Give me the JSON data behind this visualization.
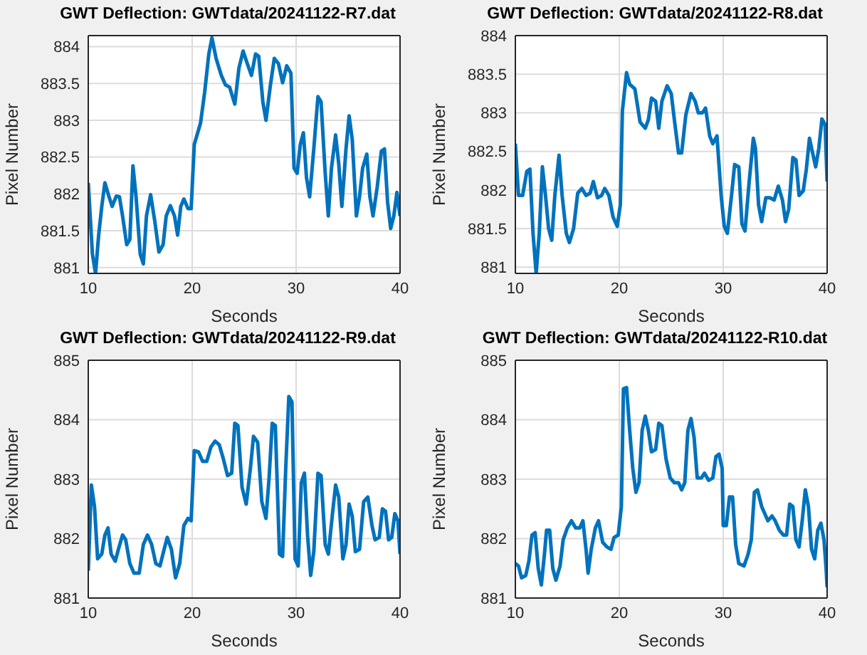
{
  "chart_data": [
    {
      "type": "line",
      "title": "GWT Deflection: GWTdata/20241122-R7.dat",
      "xlabel": "Seconds",
      "ylabel": "Pixel Number",
      "xlim": [
        10,
        40
      ],
      "xticks": [
        10,
        20,
        30,
        40
      ],
      "ylim": [
        880.92,
        884.15
      ],
      "yticks": [
        881,
        881.5,
        882,
        882.5,
        883,
        883.5,
        884
      ],
      "grid": true,
      "x": [
        10.0,
        10.4,
        10.7,
        11.0,
        11.3,
        11.6,
        12.0,
        12.3,
        12.7,
        13.0,
        13.3,
        13.7,
        14.0,
        14.3,
        14.6,
        15.0,
        15.3,
        15.6,
        16.0,
        16.4,
        16.8,
        17.2,
        17.5,
        17.9,
        18.3,
        18.6,
        18.9,
        19.2,
        19.6,
        19.9,
        20.2,
        20.8,
        21.2,
        21.6,
        21.9,
        22.3,
        22.8,
        23.2,
        23.6,
        24.1,
        24.5,
        24.9,
        25.3,
        25.7,
        26.1,
        26.4,
        26.8,
        27.1,
        27.5,
        27.9,
        28.3,
        28.7,
        29.1,
        29.5,
        29.8,
        30.1,
        30.4,
        30.7,
        31.0,
        31.3,
        31.7,
        32.1,
        32.4,
        32.8,
        33.1,
        33.4,
        33.8,
        34.1,
        34.4,
        34.8,
        35.1,
        35.4,
        35.8,
        36.1,
        36.4,
        36.8,
        37.1,
        37.4,
        37.8,
        38.2,
        38.5,
        38.8,
        39.1,
        39.4,
        39.7,
        40.0
      ],
      "series": [
        {
          "color": "#0072bd",
          "values": [
            882.15,
            881.18,
            880.92,
            881.44,
            881.83,
            882.15,
            881.96,
            881.83,
            881.97,
            881.96,
            881.7,
            881.31,
            881.38,
            882.38,
            881.96,
            881.18,
            881.05,
            881.7,
            881.99,
            881.63,
            881.21,
            881.31,
            881.7,
            881.84,
            881.7,
            881.44,
            881.83,
            881.93,
            881.8,
            881.8,
            882.67,
            882.96,
            883.38,
            883.9,
            884.12,
            883.84,
            883.61,
            883.48,
            883.45,
            883.22,
            883.71,
            883.94,
            883.77,
            883.61,
            883.9,
            883.87,
            883.25,
            883.0,
            883.45,
            883.84,
            883.77,
            883.51,
            883.74,
            883.64,
            882.35,
            882.28,
            882.67,
            882.83,
            882.22,
            881.96,
            882.61,
            883.32,
            883.25,
            882.28,
            881.7,
            882.35,
            882.8,
            882.41,
            881.83,
            882.61,
            883.06,
            882.74,
            881.7,
            881.96,
            882.35,
            882.54,
            881.96,
            881.7,
            882.09,
            882.58,
            882.61,
            881.89,
            881.53,
            881.7,
            882.02,
            881.7
          ]
        }
      ]
    },
    {
      "type": "line",
      "title": "GWT Deflection: GWTdata/20241122-R8.dat",
      "xlabel": "Seconds",
      "ylabel": "Pixel Number",
      "xlim": [
        10,
        40
      ],
      "xticks": [
        10,
        20,
        30,
        40
      ],
      "ylim": [
        880.92,
        884
      ],
      "yticks": [
        881,
        881.5,
        882,
        882.5,
        883,
        883.5,
        884
      ],
      "grid": true,
      "x": [
        10.0,
        10.3,
        10.7,
        11.1,
        11.4,
        11.7,
        12.0,
        12.3,
        12.6,
        12.9,
        13.2,
        13.5,
        13.8,
        14.2,
        14.5,
        14.9,
        15.2,
        15.6,
        16.0,
        16.4,
        16.8,
        17.2,
        17.5,
        17.9,
        18.3,
        18.6,
        19.0,
        19.4,
        19.8,
        20.1,
        20.3,
        20.7,
        21.0,
        21.5,
        22.0,
        22.5,
        22.8,
        23.1,
        23.5,
        23.8,
        24.1,
        24.6,
        25.0,
        25.3,
        25.7,
        26.0,
        26.4,
        26.9,
        27.3,
        27.6,
        28.0,
        28.3,
        28.7,
        29.0,
        29.4,
        29.8,
        30.1,
        30.4,
        30.8,
        31.1,
        31.5,
        31.8,
        32.1,
        32.5,
        32.9,
        33.1,
        33.4,
        33.7,
        34.1,
        34.5,
        34.9,
        35.3,
        35.7,
        36.0,
        36.3,
        36.7,
        37.0,
        37.3,
        37.7,
        38.0,
        38.3,
        38.6,
        38.9,
        39.2,
        39.5,
        39.8,
        40.0
      ],
      "series": [
        {
          "color": "#0072bd",
          "values": [
            882.6,
            881.93,
            881.93,
            882.24,
            882.27,
            881.44,
            880.92,
            881.44,
            882.3,
            881.93,
            881.5,
            881.35,
            881.93,
            882.45,
            881.93,
            881.44,
            881.32,
            881.5,
            881.96,
            882.02,
            881.93,
            881.96,
            882.11,
            881.9,
            881.93,
            882.02,
            881.93,
            881.65,
            881.53,
            881.81,
            883.03,
            883.52,
            883.37,
            883.31,
            882.88,
            882.8,
            882.91,
            883.19,
            883.15,
            882.8,
            883.15,
            883.35,
            883.25,
            882.91,
            882.48,
            882.48,
            882.97,
            883.25,
            883.15,
            883.0,
            883.0,
            883.06,
            882.7,
            882.6,
            882.7,
            881.93,
            881.53,
            881.44,
            881.93,
            882.33,
            882.3,
            881.56,
            881.47,
            882.11,
            882.67,
            882.54,
            881.81,
            881.59,
            881.9,
            881.9,
            881.87,
            882.05,
            881.87,
            881.59,
            881.75,
            882.42,
            882.39,
            881.93,
            881.99,
            882.27,
            882.67,
            882.48,
            882.3,
            882.54,
            882.92,
            882.85,
            882.11
          ]
        }
      ]
    },
    {
      "type": "line",
      "title": "GWT Deflection: GWTdata/20241122-R9.dat",
      "xlabel": "Seconds",
      "ylabel": "Pixel Number",
      "xlim": [
        10,
        40
      ],
      "xticks": [
        10,
        20,
        30,
        40
      ],
      "ylim": [
        881,
        885
      ],
      "yticks": [
        881,
        882,
        883,
        884,
        885
      ],
      "grid": true,
      "x": [
        10.0,
        10.3,
        10.6,
        10.9,
        11.3,
        11.6,
        11.9,
        12.2,
        12.6,
        12.9,
        13.3,
        13.6,
        14.0,
        14.4,
        14.9,
        15.3,
        15.7,
        16.1,
        16.5,
        16.9,
        17.3,
        17.6,
        18.0,
        18.4,
        18.8,
        19.2,
        19.6,
        19.9,
        20.2,
        20.6,
        21.0,
        21.4,
        21.8,
        22.2,
        22.6,
        23.0,
        23.4,
        23.8,
        24.1,
        24.4,
        24.8,
        25.2,
        25.6,
        25.9,
        26.3,
        26.7,
        27.1,
        27.4,
        27.7,
        28.0,
        28.4,
        28.7,
        29.0,
        29.3,
        29.6,
        29.9,
        30.2,
        30.5,
        30.8,
        31.1,
        31.4,
        31.7,
        32.1,
        32.4,
        32.8,
        33.1,
        33.5,
        33.8,
        34.1,
        34.5,
        34.8,
        35.1,
        35.4,
        35.7,
        36.1,
        36.5,
        36.9,
        37.3,
        37.6,
        38.0,
        38.3,
        38.6,
        38.9,
        39.2,
        39.5,
        39.8,
        40.0
      ],
      "series": [
        {
          "color": "#0072bd",
          "values": [
            881.46,
            882.9,
            882.54,
            881.66,
            881.74,
            882.06,
            882.18,
            881.74,
            881.62,
            881.82,
            882.06,
            881.98,
            881.58,
            881.42,
            881.42,
            881.9,
            882.06,
            881.9,
            881.58,
            881.54,
            881.82,
            882.02,
            881.82,
            881.34,
            881.58,
            882.22,
            882.34,
            882.3,
            883.48,
            883.46,
            883.3,
            883.3,
            883.54,
            883.64,
            883.58,
            883.34,
            883.06,
            883.1,
            883.94,
            883.9,
            882.86,
            882.58,
            883.18,
            883.72,
            883.62,
            882.62,
            882.34,
            883.02,
            883.94,
            883.9,
            881.74,
            881.7,
            883.18,
            884.39,
            884.3,
            881.66,
            881.54,
            882.94,
            883.1,
            882.06,
            881.38,
            881.78,
            883.1,
            883.06,
            881.9,
            881.74,
            882.42,
            882.9,
            882.7,
            881.66,
            881.9,
            882.58,
            882.38,
            881.78,
            881.82,
            882.62,
            882.7,
            882.22,
            881.98,
            882.02,
            882.5,
            882.46,
            881.98,
            882.02,
            882.42,
            882.3,
            881.74
          ]
        }
      ]
    },
    {
      "type": "line",
      "title": "GWT Deflection: GWTdata/20241122-R10.dat",
      "xlabel": "Seconds",
      "ylabel": "Pixel Number",
      "xlim": [
        10,
        40
      ],
      "xticks": [
        10,
        20,
        30,
        40
      ],
      "ylim": [
        881,
        885
      ],
      "yticks": [
        881,
        882,
        883,
        884,
        885
      ],
      "grid": true,
      "x": [
        10.0,
        10.3,
        10.6,
        11.0,
        11.3,
        11.6,
        11.9,
        12.2,
        12.5,
        12.8,
        13.0,
        13.3,
        13.6,
        13.9,
        14.3,
        14.6,
        15.0,
        15.4,
        15.8,
        16.2,
        16.5,
        16.8,
        17.0,
        17.3,
        17.7,
        18.0,
        18.4,
        18.8,
        19.2,
        19.5,
        19.9,
        20.2,
        20.4,
        20.7,
        21.0,
        21.3,
        21.6,
        21.9,
        22.2,
        22.5,
        22.8,
        23.1,
        23.5,
        23.8,
        24.1,
        24.5,
        24.9,
        25.3,
        25.7,
        26.0,
        26.3,
        26.6,
        26.9,
        27.2,
        27.5,
        27.9,
        28.2,
        28.6,
        29.0,
        29.3,
        29.6,
        29.9,
        30.0,
        30.3,
        30.6,
        30.9,
        31.2,
        31.5,
        32.0,
        32.4,
        32.7,
        33.0,
        33.3,
        33.7,
        34.0,
        34.3,
        34.7,
        35.0,
        35.4,
        35.8,
        36.1,
        36.4,
        36.7,
        37.0,
        37.3,
        37.6,
        37.9,
        38.2,
        38.5,
        38.8,
        39.1,
        39.4,
        39.7,
        39.9,
        40.0
      ],
      "series": [
        {
          "color": "#0072bd",
          "values": [
            881.58,
            881.54,
            881.34,
            881.38,
            881.62,
            882.06,
            882.1,
            881.5,
            881.22,
            881.74,
            882.14,
            882.14,
            881.5,
            881.3,
            881.54,
            881.98,
            882.18,
            882.3,
            882.18,
            882.18,
            882.3,
            881.82,
            881.42,
            881.82,
            882.18,
            882.3,
            881.94,
            881.86,
            881.82,
            882.02,
            882.06,
            882.54,
            884.52,
            884.54,
            883.82,
            883.18,
            882.78,
            882.94,
            883.82,
            884.06,
            883.82,
            883.46,
            883.5,
            883.94,
            883.9,
            883.34,
            883.02,
            882.94,
            882.94,
            882.82,
            882.94,
            883.82,
            884.02,
            883.7,
            883.02,
            883.02,
            883.1,
            882.98,
            883.02,
            883.38,
            883.42,
            883.18,
            882.22,
            882.22,
            882.7,
            882.7,
            881.9,
            881.58,
            881.54,
            881.74,
            881.98,
            882.78,
            882.82,
            882.54,
            882.42,
            882.3,
            882.38,
            882.3,
            882.14,
            882.06,
            882.06,
            882.58,
            882.54,
            881.98,
            881.86,
            882.3,
            882.82,
            882.54,
            881.82,
            881.66,
            882.14,
            882.26,
            881.98,
            881.5,
            881.18
          ]
        }
      ]
    }
  ]
}
